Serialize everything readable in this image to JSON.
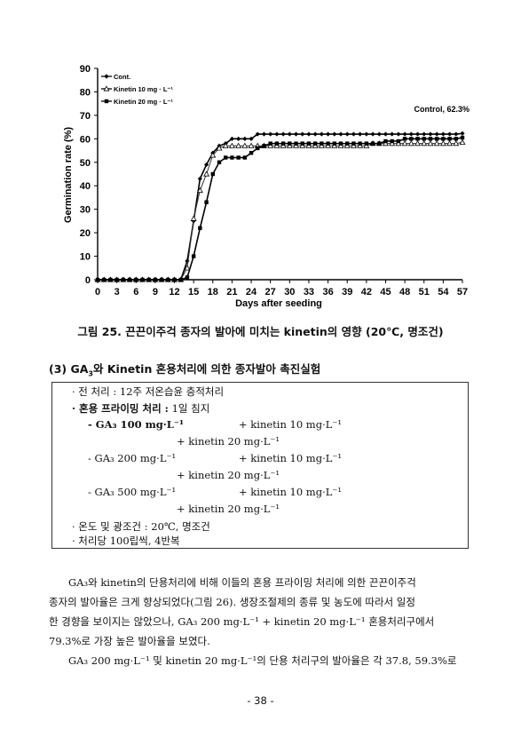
{
  "chart_data": {
    "type": "line",
    "xlabel": "Days after seeding",
    "ylabel": "Germination rate (%)",
    "xlim": [
      0,
      57
    ],
    "ylim": [
      0,
      90
    ],
    "xticks": [
      0,
      3,
      6,
      9,
      12,
      15,
      18,
      21,
      24,
      27,
      30,
      33,
      36,
      39,
      42,
      45,
      48,
      51,
      54,
      57
    ],
    "yticks": [
      0,
      10,
      20,
      30,
      40,
      50,
      60,
      70,
      80,
      90
    ],
    "legend_position": "top-left",
    "grid": false,
    "annotation": "Control, 62.3%",
    "series": [
      {
        "name": "Cont.",
        "marker": "filled-diamond",
        "x": [
          0,
          1,
          2,
          3,
          4,
          5,
          6,
          7,
          8,
          9,
          10,
          11,
          12,
          13,
          14,
          15,
          16,
          17,
          18,
          19,
          20,
          21,
          22,
          23,
          24,
          25,
          26,
          27,
          28,
          29,
          30,
          31,
          32,
          33,
          34,
          35,
          36,
          37,
          38,
          39,
          40,
          41,
          42,
          43,
          44,
          45,
          46,
          47,
          48,
          49,
          50,
          51,
          52,
          53,
          54,
          55,
          56,
          57
        ],
        "values": [
          0,
          0,
          0,
          0,
          0,
          0,
          0,
          0,
          0,
          0,
          0,
          0,
          0,
          0,
          8,
          25,
          43,
          49,
          54,
          57,
          58,
          60,
          60,
          60,
          60,
          62,
          62,
          62,
          62,
          62,
          62,
          62,
          62,
          62,
          62,
          62,
          62,
          62,
          62,
          62,
          62,
          62,
          62,
          62,
          62,
          62,
          62,
          62,
          62,
          62,
          62,
          62,
          62,
          62,
          62,
          62,
          62,
          62.3
        ]
      },
      {
        "name": "Kinetin 10 mg · L⁻¹",
        "marker": "open-triangle",
        "x": [
          0,
          1,
          2,
          3,
          4,
          5,
          6,
          7,
          8,
          9,
          10,
          11,
          12,
          13,
          14,
          15,
          16,
          17,
          18,
          19,
          20,
          21,
          22,
          23,
          24,
          25,
          26,
          27,
          28,
          29,
          30,
          31,
          32,
          33,
          34,
          35,
          36,
          37,
          38,
          39,
          40,
          41,
          42,
          43,
          44,
          45,
          46,
          47,
          48,
          49,
          50,
          51,
          52,
          53,
          54,
          55,
          56,
          57
        ],
        "values": [
          0,
          0,
          0,
          0,
          0,
          0,
          0,
          0,
          0,
          0,
          0,
          0,
          0,
          0,
          5,
          26,
          38,
          45,
          53,
          56,
          57,
          57,
          57,
          57,
          57,
          57,
          57,
          57,
          57,
          57,
          57,
          57,
          57,
          57,
          57,
          57,
          57,
          57,
          57,
          57,
          57,
          57,
          57,
          58,
          58,
          58,
          58,
          58,
          58,
          58,
          58,
          58,
          58,
          58,
          58,
          58,
          58,
          58.5
        ]
      },
      {
        "name": "Kinetin 20 mg · L⁻¹",
        "marker": "filled-square",
        "x": [
          0,
          1,
          2,
          3,
          4,
          5,
          6,
          7,
          8,
          9,
          10,
          11,
          12,
          13,
          14,
          15,
          16,
          17,
          18,
          19,
          20,
          21,
          22,
          23,
          24,
          25,
          26,
          27,
          28,
          29,
          30,
          31,
          32,
          33,
          34,
          35,
          36,
          37,
          38,
          39,
          40,
          41,
          42,
          43,
          44,
          45,
          46,
          47,
          48,
          49,
          50,
          51,
          52,
          53,
          54,
          55,
          56,
          57
        ],
        "values": [
          0,
          0,
          0,
          0,
          0,
          0,
          0,
          0,
          0,
          0,
          0,
          0,
          0,
          0,
          1,
          10,
          22,
          33,
          45,
          50,
          52,
          52,
          52,
          52,
          54,
          56,
          57,
          58,
          58,
          58,
          58,
          58,
          58,
          58,
          58,
          58,
          58,
          58,
          58,
          58,
          58,
          58,
          58,
          58,
          58,
          59,
          59,
          59,
          60,
          60,
          60,
          60,
          60,
          60,
          60,
          60,
          60,
          60.5
        ]
      }
    ]
  },
  "caption": "그림 25. 끈끈이주걱 종자의 발아에 미치는 kinetin의 영향 (20℃, 명조건)",
  "section": {
    "number": "(3)",
    "title_pre": "GA",
    "title_sub": "3",
    "title_post": "와 Kinetin 혼용처리에 의한 종자발아 촉진실험"
  },
  "protocol": {
    "pretreat": "· 전 처리 : 12주 저온습윤 층적처리",
    "priming_label": "· 혼용 프라이밍 처리 :",
    "priming_value": "1일 침지",
    "ga_a": "- GA₃ 100 mg·L⁻¹",
    "ga_b": "- GA₃ 200 mg·L⁻¹",
    "ga_c": "- GA₃ 500 mg·L⁻¹",
    "k10": "+ kinetin 10 mg·L⁻¹",
    "k20": "+ kinetin 20 mg·L⁻¹",
    "cond": "· 온도 및 광조건 : 20℃, 명조건",
    "rep": "· 처리당 100립씩, 4반복"
  },
  "body": {
    "p1_l1": "GA₃와 kinetin의 단용처리에 비해 이들의 혼용 프라이밍 처리에 의한 끈끈이주걱",
    "p1_l2": "종자의 발아율은 크게 향상되었다(그림 26). 생장조절제의 종류 및 농도에 따라서 일정",
    "p1_l3": "한 경향을 보이지는 않았으나, GA₃ 200 mg·L⁻¹ + kinetin 20 mg·L⁻¹ 혼용처리구에서",
    "p1_l4": "79.3%로 가장 높은 발아율을 보였다.",
    "p2_l1": "GA₃ 200 mg·L⁻¹ 및 kinetin 20 mg·L⁻¹의 단용 처리구의 발아율은 각 37.8, 59.3%로"
  },
  "page_number": "- 38 -"
}
